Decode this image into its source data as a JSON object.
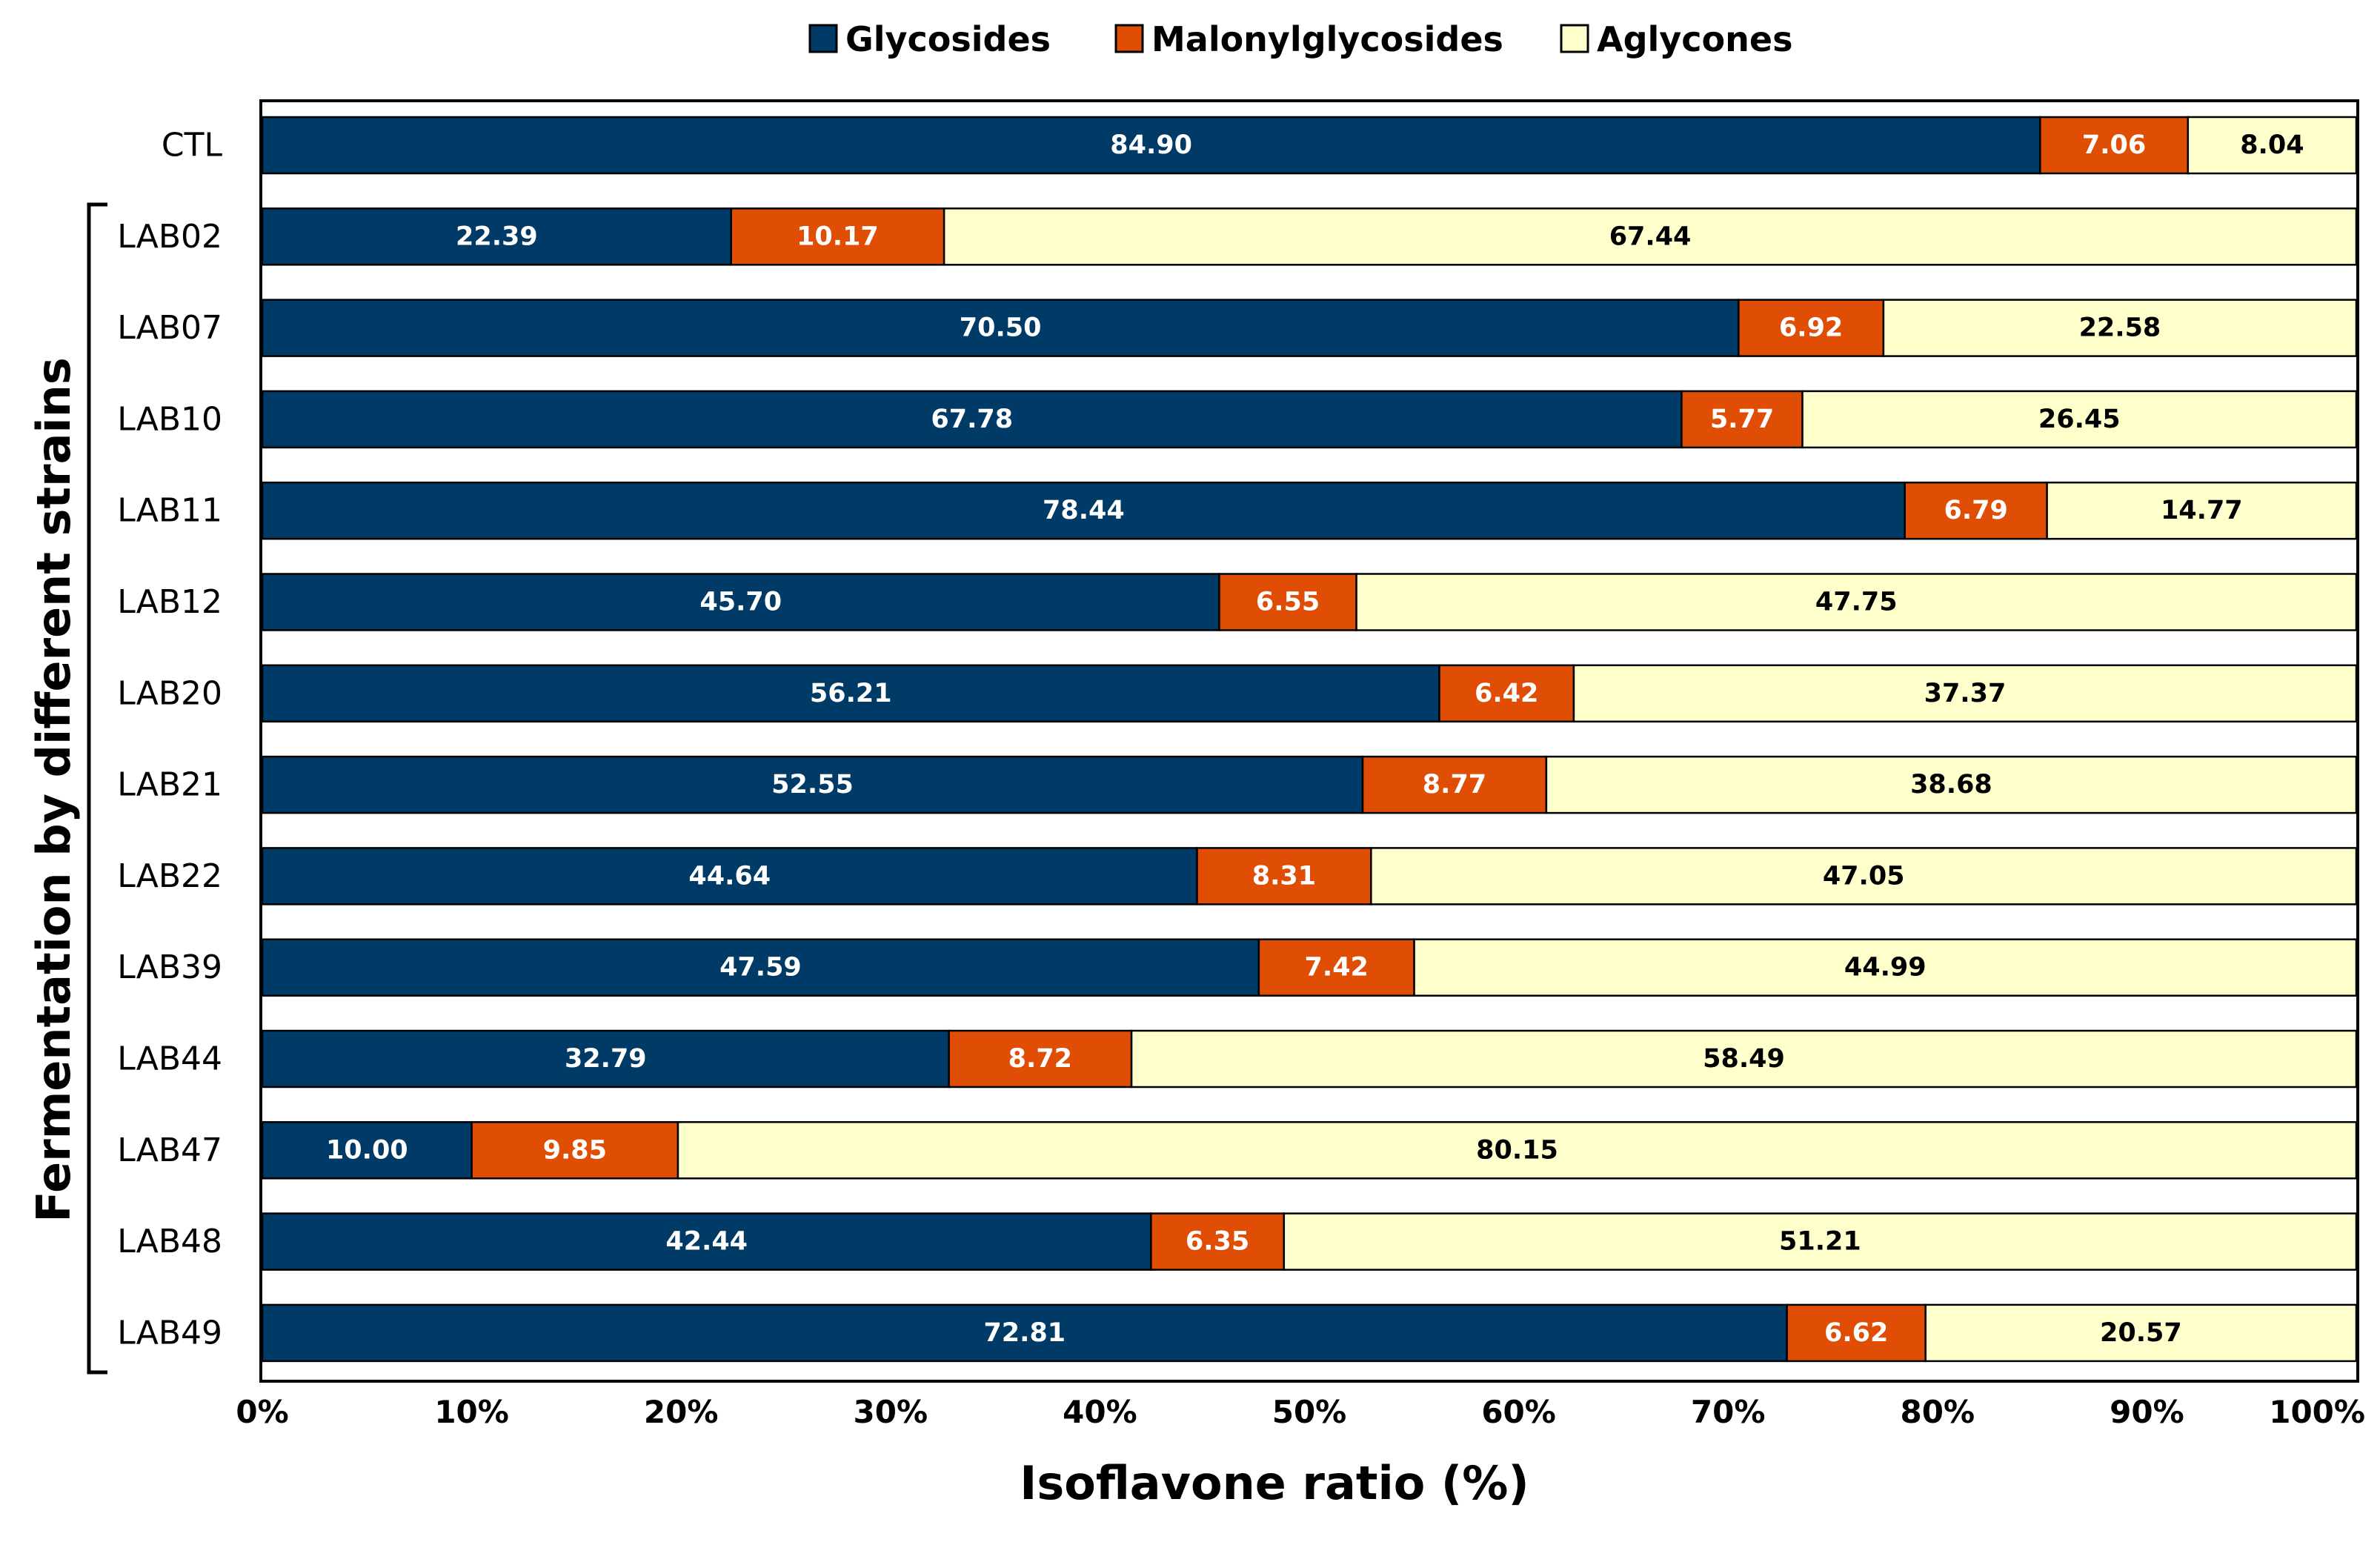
{
  "chart_data": {
    "type": "bar",
    "orientation": "horizontal",
    "stacked": true,
    "title": "",
    "xlabel": "Isoflavone ratio (%)",
    "group_label": "Fermentation by different strains",
    "xlim": [
      0,
      100
    ],
    "x_ticks": [
      "0%",
      "10%",
      "20%",
      "30%",
      "40%",
      "50%",
      "60%",
      "70%",
      "80%",
      "90%",
      "100%"
    ],
    "legend_position": "top",
    "categories": [
      "CTL",
      "LAB02",
      "LAB07",
      "LAB10",
      "LAB11",
      "LAB12",
      "LAB20",
      "LAB21",
      "LAB22",
      "LAB39",
      "LAB44",
      "LAB47",
      "LAB48",
      "LAB49"
    ],
    "series": [
      {
        "name": "Glycosides",
        "color": "#003a66",
        "label_color": "#ffffff",
        "values": [
          84.9,
          22.39,
          70.5,
          67.78,
          78.44,
          45.7,
          56.21,
          52.55,
          44.64,
          47.59,
          32.79,
          10.0,
          42.44,
          72.81
        ],
        "labels": [
          "84.90",
          "22.39",
          "70.50",
          "67.78",
          "78.44",
          "45.70",
          "56.21",
          "52.55",
          "44.64",
          "47.59",
          "32.79",
          "10.00",
          "42.44",
          "72.81"
        ]
      },
      {
        "name": "Malonylglycosides",
        "color": "#e04e06",
        "label_color": "#ffffff",
        "values": [
          7.06,
          10.17,
          6.92,
          5.77,
          6.79,
          6.55,
          6.42,
          8.77,
          8.31,
          7.42,
          8.72,
          9.85,
          6.35,
          6.62
        ],
        "labels": [
          "7.06",
          "10.17",
          "6.92",
          "5.77",
          "6.79",
          "6.55",
          "6.42",
          "8.77",
          "8.31",
          "7.42",
          "8.72",
          "9.85",
          "6.35",
          "6.62"
        ]
      },
      {
        "name": "Aglycones",
        "color": "#ffffcc",
        "label_color": "#000000",
        "values": [
          8.04,
          67.44,
          22.58,
          26.45,
          14.77,
          47.75,
          37.37,
          38.68,
          47.05,
          44.99,
          58.49,
          80.15,
          51.21,
          20.57
        ],
        "labels": [
          "8.04",
          "67.44",
          "22.58",
          "26.45",
          "14.77",
          "47.75",
          "37.37",
          "38.68",
          "47.05",
          "44.99",
          "58.49",
          "80.15",
          "51.21",
          "20.57"
        ]
      }
    ]
  }
}
